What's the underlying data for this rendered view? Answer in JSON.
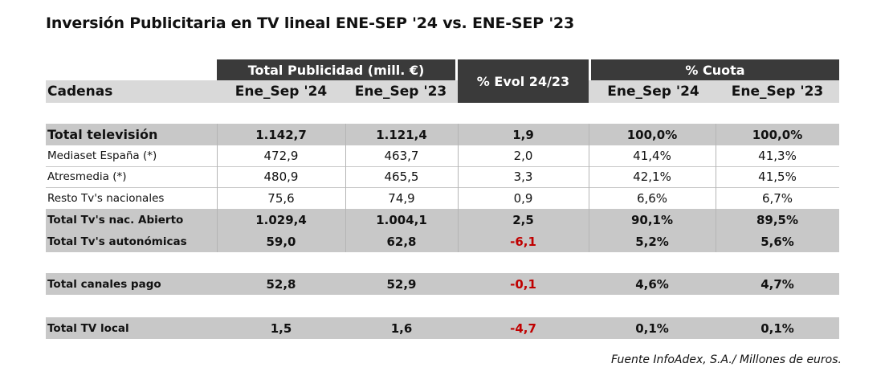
{
  "title": "Inversión Publicitaria en TV lineal ENE-SEP '24 vs. ENE-SEP '23",
  "header": {
    "group_total": "Total Publicidad (mill. €)",
    "group_evol": "% Evol 24/23",
    "group_cuota": "% Cuota",
    "col_cadenas": "Cadenas",
    "col_sep24": "Ene_Sep '24",
    "col_sep23": "Ene_Sep '23",
    "col_cuota24": "Ene_Sep '24",
    "col_cuota23": "Ene_Sep '23"
  },
  "rows": [
    {
      "name": "Total televisión",
      "v24": "1.142,7",
      "v23": "1.121,4",
      "evol": "1,9",
      "c24": "100,0%",
      "c23": "100,0%"
    },
    {
      "name": "Mediaset España (*)",
      "v24": "472,9",
      "v23": "463,7",
      "evol": "2,0",
      "c24": "41,4%",
      "c23": "41,3%"
    },
    {
      "name": "Atresmedia (*)",
      "v24": "480,9",
      "v23": "465,5",
      "evol": "3,3",
      "c24": "42,1%",
      "c23": "41,5%"
    },
    {
      "name": "Resto Tv's nacionales",
      "v24": "75,6",
      "v23": "74,9",
      "evol": "0,9",
      "c24": "6,6%",
      "c23": "6,7%"
    },
    {
      "name": "Total Tv's nac. Abierto",
      "v24": "1.029,4",
      "v23": "1.004,1",
      "evol": "2,5",
      "c24": "90,1%",
      "c23": "89,5%"
    },
    {
      "name": "Total Tv's autonómicas",
      "v24": "59,0",
      "v23": "62,8",
      "evol": "-6,1",
      "c24": "5,2%",
      "c23": "5,6%"
    },
    {
      "name": "Total canales pago",
      "v24": "52,8",
      "v23": "52,9",
      "evol": "-0,1",
      "c24": "4,6%",
      "c23": "4,7%"
    },
    {
      "name": "Total TV local",
      "v24": "1,5",
      "v23": "1,6",
      "evol": "-4,7",
      "c24": "0,1%",
      "c23": "0,1%"
    }
  ],
  "source": "Fuente InfoAdex, S.A./ Millones de euros.",
  "colors": {
    "dark_header": "#3a3a3a",
    "negative": "#c00000",
    "band": "#c8c8c8"
  }
}
